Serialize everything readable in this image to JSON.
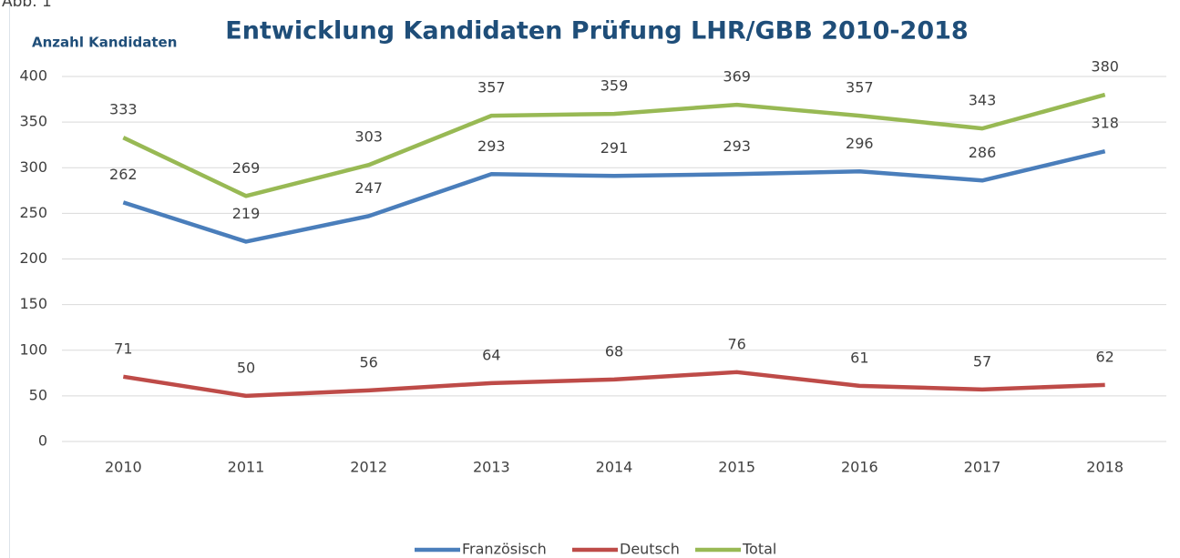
{
  "chart_data": {
    "type": "line",
    "figure_label": "Abb. 1",
    "title": "Entwicklung Kandidaten Prüfung LHR/GBB 2010-2018",
    "y_label": "Anzahl Kandidaten",
    "categories": [
      "2010",
      "2011",
      "2012",
      "2013",
      "2014",
      "2015",
      "2016",
      "2017",
      "2018"
    ],
    "series": [
      {
        "name": "Französisch",
        "color": "#4a7ebb",
        "values": [
          262,
          219,
          247,
          293,
          291,
          293,
          296,
          286,
          318
        ]
      },
      {
        "name": "Deutsch",
        "color": "#be4b48",
        "values": [
          71,
          50,
          56,
          64,
          68,
          76,
          61,
          57,
          62
        ]
      },
      {
        "name": "Total",
        "color": "#98b954",
        "values": [
          333,
          269,
          303,
          357,
          359,
          369,
          357,
          343,
          380
        ]
      }
    ],
    "ylim": [
      0,
      400
    ],
    "yticks": [
      0,
      50,
      100,
      150,
      200,
      250,
      300,
      350,
      400
    ],
    "grid": true,
    "legend": "bottom"
  }
}
